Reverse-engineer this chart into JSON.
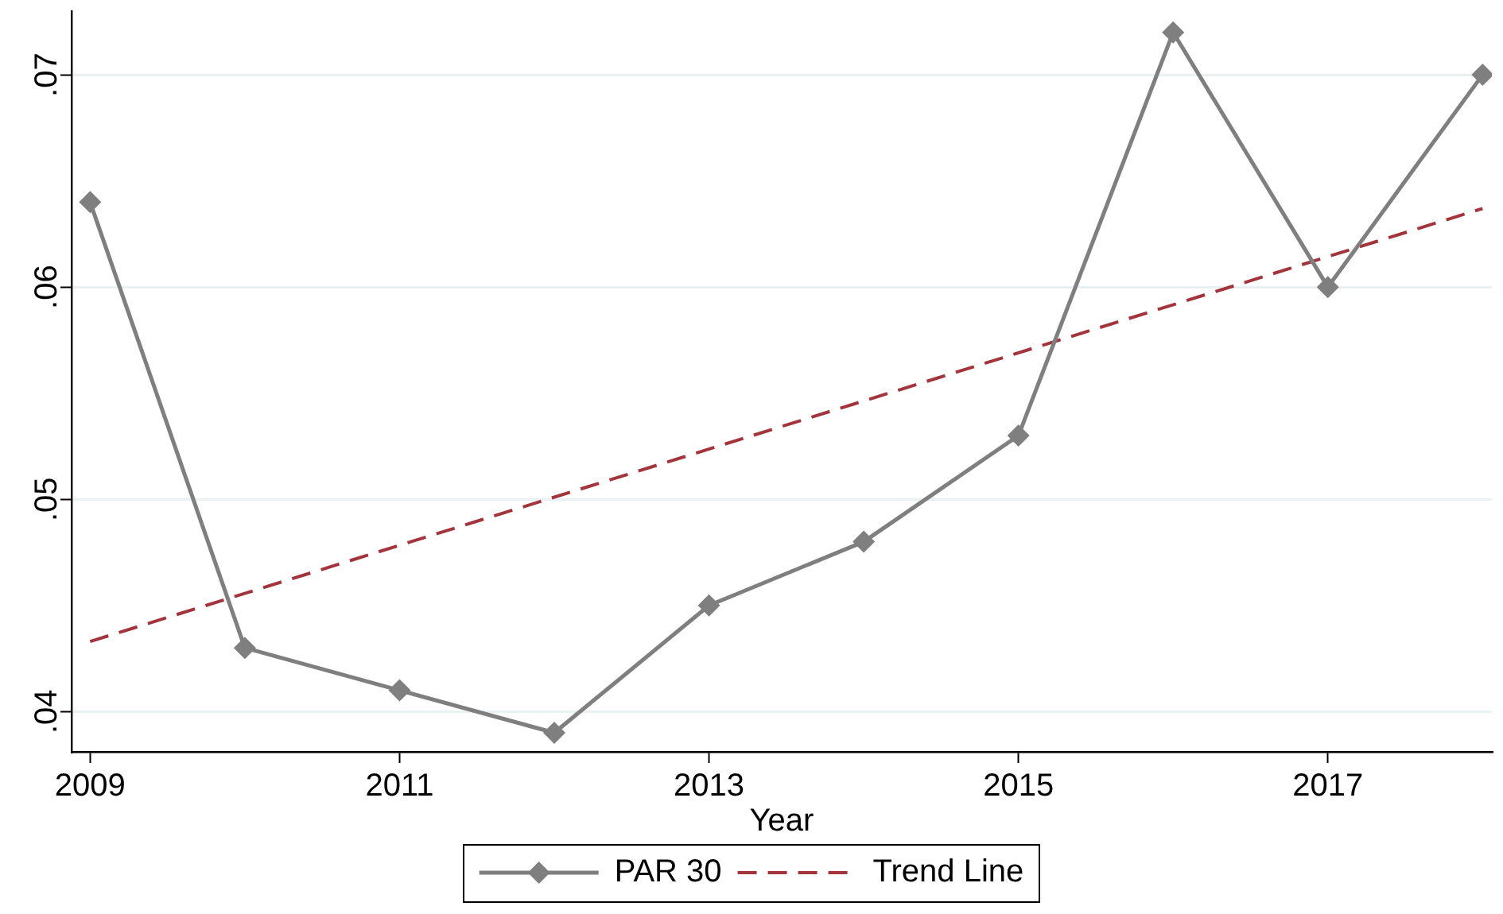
{
  "chart_data": {
    "type": "line",
    "xlabel": "Year",
    "x": [
      2009,
      2010,
      2011,
      2012,
      2013,
      2014,
      2015,
      2016,
      2017,
      2018
    ],
    "series": [
      {
        "name": "PAR 30",
        "color": "#7f7f7f",
        "values": [
          0.064,
          0.043,
          0.041,
          0.039,
          0.045,
          0.048,
          0.053,
          0.072,
          0.06,
          0.07
        ]
      },
      {
        "name": "Trend Line",
        "color": "#a3343b",
        "x": [
          2009,
          2018
        ],
        "values": [
          0.0433,
          0.0637
        ],
        "marker": "none",
        "line_style": "dashed"
      }
    ],
    "xlim": [
      2008.88,
      2018.06
    ],
    "xticks": [
      2009,
      2011,
      2013,
      2015,
      2017
    ],
    "ylim": [
      0.0381,
      0.073
    ],
    "yticks": [
      {
        "value": 0.04,
        "label": ".04"
      },
      {
        "value": 0.05,
        "label": ".05"
      },
      {
        "value": 0.06,
        "label": ".06"
      },
      {
        "value": 0.07,
        "label": ".07"
      }
    ],
    "grid": "y",
    "legend": "bottom",
    "marker": "diamond",
    "line_style": "solid"
  }
}
